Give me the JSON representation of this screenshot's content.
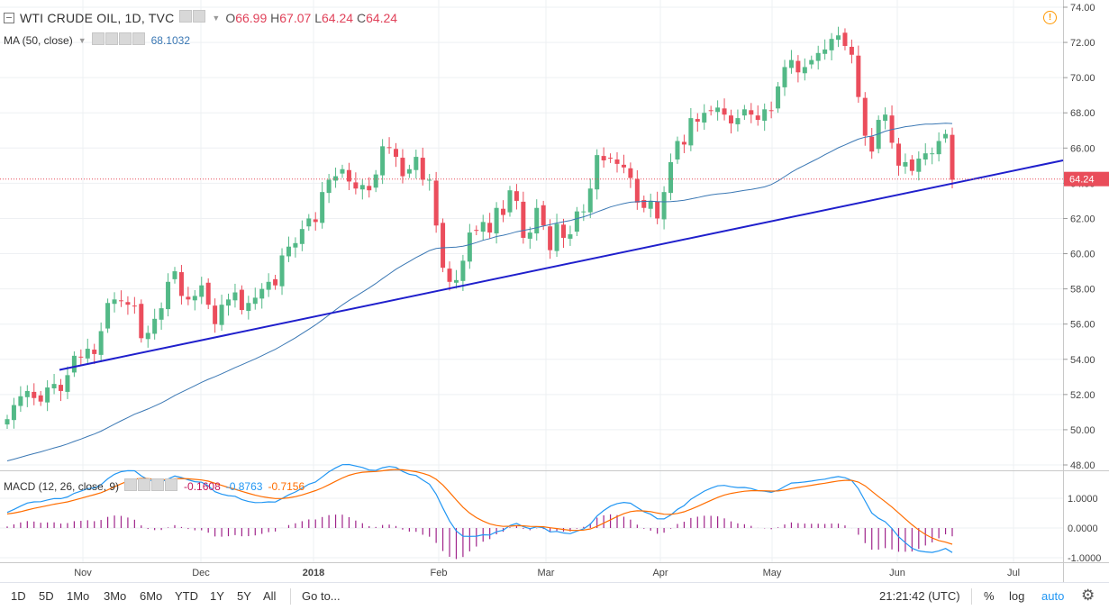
{
  "legend": {
    "symbol_title": "WTI CRUDE OIL, 1D, TVC",
    "open_label": "O",
    "open": "66.99",
    "high_label": "H",
    "high": "67.07",
    "low_label": "L",
    "low": "64.24",
    "close_label": "C",
    "close": "64.24",
    "ma_label": "MA (50, close)",
    "ma_value": "68.1032",
    "macd_label": "MACD (12, 26, close, 9)",
    "macd_hist": "-0.1608",
    "macd_line": "-0.8763",
    "macd_signal": "-0.7156"
  },
  "price_tag": "64.24",
  "toolbar": {
    "ranges": [
      "1D",
      "5D",
      "1Mo",
      "3Mo",
      "6Mo",
      "YTD",
      "1Y",
      "5Y",
      "All"
    ],
    "goto": "Go to...",
    "time": "21:21:42 (UTC)",
    "percent": "%",
    "log": "log",
    "auto": "auto"
  },
  "colors": {
    "up": "#53b987",
    "down": "#eb4d5c",
    "ma": "#3b78b4",
    "trend": "#1f1fcc",
    "macd": "#2196f3",
    "signal": "#ff6d00",
    "hist": "#a0258b",
    "price_tag": "#e94d5a"
  },
  "chart_data": {
    "type": "candlestick",
    "price_axis": {
      "ticks": [
        "74.00",
        "72.00",
        "70.00",
        "68.00",
        "66.00",
        "64.00",
        "62.00",
        "60.00",
        "58.00",
        "56.00",
        "54.00",
        "52.00",
        "50.00",
        "48.00"
      ],
      "range": [
        47.8,
        74.0
      ]
    },
    "macd_axis": {
      "ticks": [
        "1.0000",
        "0.0000",
        "-1.0000"
      ],
      "range": [
        -1.1,
        1.75
      ]
    },
    "x_labels": [
      "Nov",
      "Dec",
      "2018",
      "Feb",
      "Mar",
      "Apr",
      "May",
      "Jun",
      "Jul"
    ],
    "closes": [
      50.6,
      51.4,
      51.9,
      52.2,
      51.8,
      51.6,
      52.4,
      52.6,
      52.2,
      53.1,
      54.2,
      54.1,
      54.6,
      54.3,
      55.6,
      57.2,
      57.4,
      57.3,
      57.1,
      57.0,
      55.2,
      55.5,
      56.3,
      56.9,
      58.4,
      59.0,
      57.6,
      57.4,
      57.6,
      58.2,
      57.1,
      56.0,
      57.1,
      57.4,
      57.8,
      56.8,
      57.2,
      57.5,
      58.0,
      58.4,
      58.2,
      59.9,
      60.4,
      60.6,
      61.4,
      62.0,
      61.8,
      63.5,
      64.2,
      64.4,
      64.8,
      64.1,
      63.7,
      63.9,
      63.6,
      64.5,
      66.1,
      66.0,
      65.5,
      64.4,
      64.8,
      65.5,
      64.2,
      64.2,
      61.6,
      59.2,
      58.4,
      58.5,
      59.6,
      61.2,
      61.3,
      61.8,
      61.2,
      62.6,
      62.2,
      63.6,
      63.0,
      60.9,
      61.2,
      62.6,
      61.6,
      60.2,
      61.7,
      60.9,
      61.1,
      62.4,
      62.4,
      63.7,
      65.6,
      65.3,
      65.4,
      65.1,
      64.9,
      64.3,
      62.9,
      62.6,
      63.0,
      62.0,
      63.5,
      65.2,
      66.4,
      66.2,
      67.7,
      67.5,
      68.0,
      68.1,
      68.3,
      67.9,
      67.4,
      67.7,
      68.2,
      67.9,
      67.6,
      68.2,
      68.1,
      69.5,
      70.6,
      71.0,
      70.3,
      70.6,
      71.0,
      71.4,
      71.6,
      72.2,
      72.4,
      71.8,
      71.3,
      68.9,
      66.7,
      65.8,
      67.6,
      67.9,
      66.3,
      65.0,
      65.2,
      64.7,
      65.4,
      65.7,
      65.7,
      66.4,
      66.8,
      64.2
    ],
    "ma50": {
      "label": "MA (50, close)",
      "last_value": 68.1032
    },
    "macd": {
      "fast": 12,
      "slow": 26,
      "signal": 9,
      "last_histogram": -0.1608,
      "last_macd": -0.8763,
      "last_signal": -0.7156
    },
    "trendline": {
      "from": {
        "date": "Oct 20",
        "price": 53.4
      },
      "to": {
        "date": "Jun 30",
        "price": 65.3
      }
    },
    "last_price": 64.24
  }
}
